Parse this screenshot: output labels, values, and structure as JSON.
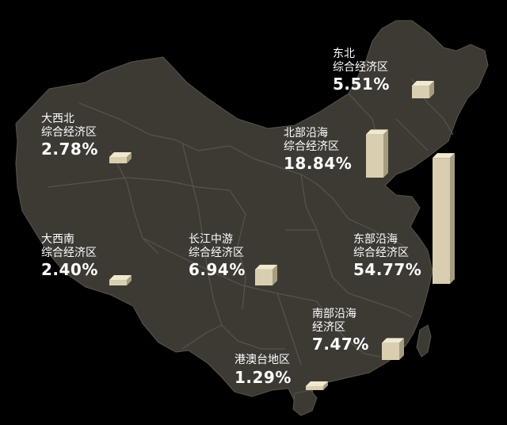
{
  "regions": [
    {
      "id": "northeast",
      "name_line1": "东北",
      "name_line2": "综合经济区",
      "percent": "5.51%",
      "value": 5.51
    },
    {
      "id": "great-northwest",
      "name_line1": "大西北",
      "name_line2": "综合经济区",
      "percent": "2.78%",
      "value": 2.78
    },
    {
      "id": "northern-coastal",
      "name_line1": "北部沿海",
      "name_line2": "综合经济区",
      "percent": "18.84%",
      "value": 18.84
    },
    {
      "id": "great-southwest",
      "name_line1": "大西南",
      "name_line2": "综合经济区",
      "percent": "2.40%",
      "value": 2.4
    },
    {
      "id": "middle-yangtze",
      "name_line1": "长江中游",
      "name_line2": "综合经济区",
      "percent": "6.94%",
      "value": 6.94
    },
    {
      "id": "eastern-coastal",
      "name_line1": "东部沿海",
      "name_line2": "综合经济区",
      "percent": "54.77%",
      "value": 54.77
    },
    {
      "id": "southern-coastal",
      "name_line1": "南部沿海",
      "name_line2": "经济区",
      "percent": "7.47%",
      "value": 7.47
    },
    {
      "id": "hk-macao-taiwan",
      "name_line1": "港澳台地区",
      "name_line2": "",
      "percent": "1.29%",
      "value": 1.29
    }
  ],
  "colors": {
    "background": "#000000",
    "land": "#3d3a34",
    "border": "#58544c",
    "bar_front": "#d9cfb0",
    "bar_top": "#f1e9cf",
    "bar_side": "#a69d80",
    "text": "#ffffff"
  }
}
